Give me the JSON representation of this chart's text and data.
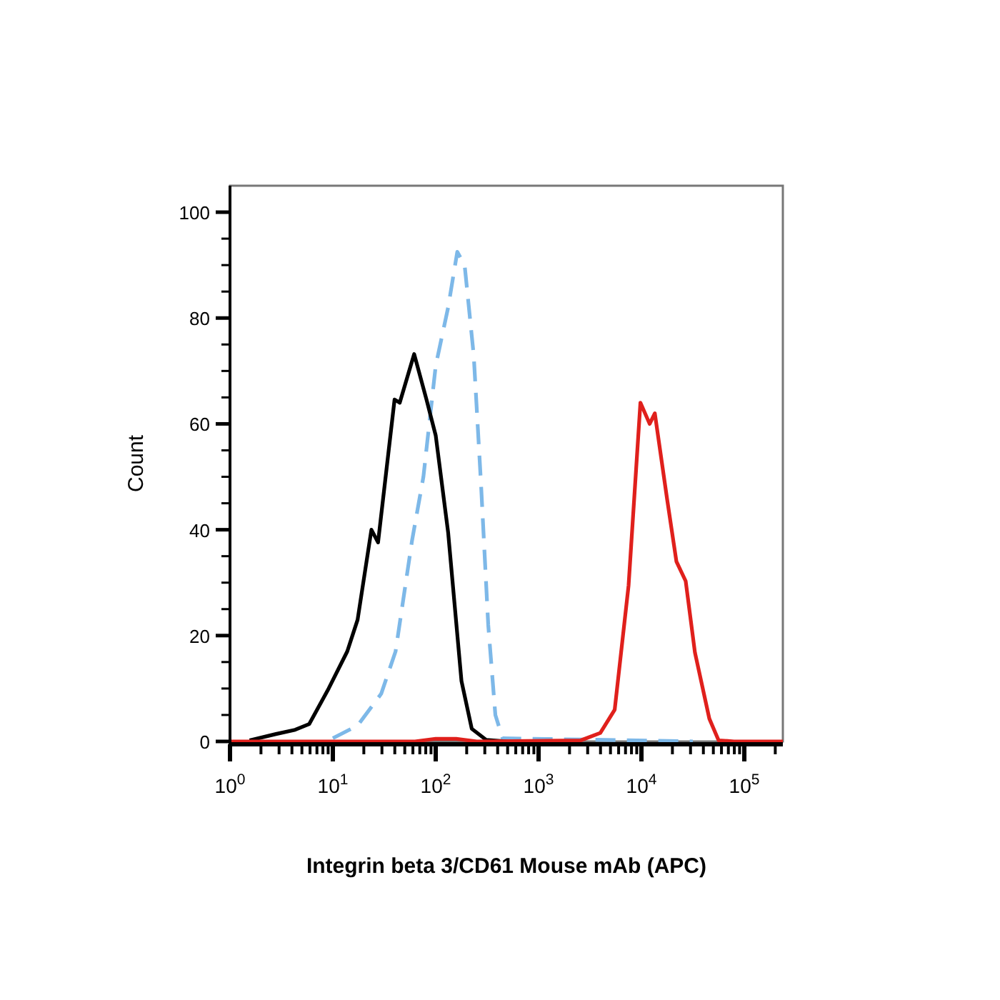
{
  "chart_data": {
    "type": "line",
    "xlabel": "Integrin beta 3/CD61 Mouse mAb (APC)",
    "ylabel": "Count",
    "log": "x",
    "xlim": [
      1,
      237000
    ],
    "ylim": [
      0,
      105
    ],
    "xticks": [
      {
        "value": 1,
        "label": "10$^{0}$"
      },
      {
        "value": 2,
        "label": null
      },
      {
        "value": 3,
        "label": null
      },
      {
        "value": 4,
        "label": null
      },
      {
        "value": 5,
        "label": null
      },
      {
        "value": 6,
        "label": null
      },
      {
        "value": 7,
        "label": null
      },
      {
        "value": 8,
        "label": null
      },
      {
        "value": 9,
        "label": null
      },
      {
        "value": 10,
        "label": "10$^{1}$"
      },
      {
        "value": 20,
        "label": null
      },
      {
        "value": 30,
        "label": null
      },
      {
        "value": 40,
        "label": null
      },
      {
        "value": 50,
        "label": null
      },
      {
        "value": 60,
        "label": null
      },
      {
        "value": 70,
        "label": null
      },
      {
        "value": 80,
        "label": null
      },
      {
        "value": 90,
        "label": null
      },
      {
        "value": 100,
        "label": "10$^{2}$"
      },
      {
        "value": 200,
        "label": null
      },
      {
        "value": 300,
        "label": null
      },
      {
        "value": 400,
        "label": null
      },
      {
        "value": 500,
        "label": null
      },
      {
        "value": 600,
        "label": null
      },
      {
        "value": 700,
        "label": null
      },
      {
        "value": 800,
        "label": null
      },
      {
        "value": 900,
        "label": null
      },
      {
        "value": 1000,
        "label": "10$^{3}$"
      },
      {
        "value": 2000,
        "label": null
      },
      {
        "value": 3000,
        "label": null
      },
      {
        "value": 4000,
        "label": null
      },
      {
        "value": 5000,
        "label": null
      },
      {
        "value": 6000,
        "label": null
      },
      {
        "value": 7000,
        "label": null
      },
      {
        "value": 8000,
        "label": null
      },
      {
        "value": 9000,
        "label": null
      },
      {
        "value": 10000,
        "label": "10$^{4}$"
      },
      {
        "value": 20000,
        "label": null
      },
      {
        "value": 30000,
        "label": null
      },
      {
        "value": 40000,
        "label": null
      },
      {
        "value": 50000,
        "label": null
      },
      {
        "value": 60000,
        "label": null
      },
      {
        "value": 70000,
        "label": null
      },
      {
        "value": 80000,
        "label": null
      },
      {
        "value": 90000,
        "label": null
      },
      {
        "value": 100000,
        "label": "10$^{5}$"
      },
      {
        "value": 200000,
        "label": null
      }
    ],
    "yticks": [
      0,
      {
        "value": 5,
        "label": null
      },
      {
        "value": 10,
        "label": null
      },
      {
        "value": 15,
        "label": null
      },
      20,
      {
        "value": 25,
        "label": null
      },
      {
        "value": 30,
        "label": null
      },
      {
        "value": 35,
        "label": null
      },
      40,
      {
        "value": 45,
        "label": null
      },
      {
        "value": 50,
        "label": null
      },
      {
        "value": 55,
        "label": null
      },
      60,
      {
        "value": 65,
        "label": null
      },
      {
        "value": 70,
        "label": null
      },
      {
        "value": 75,
        "label": null
      },
      80,
      {
        "value": 85,
        "label": null
      },
      {
        "value": 90,
        "label": null
      },
      {
        "value": 95,
        "label": null
      },
      100
    ],
    "grid": false,
    "marker": "none",
    "series": [
      {
        "color": "#7db8e8",
        "line_style": "dashed",
        "x": [
          10,
          17.4,
          29.5,
          40.7,
          58.9,
          75.9,
          100,
          132,
          162,
          191,
          234,
          275,
          324,
          380,
          447,
          31600
        ],
        "values": [
          0.6,
          3,
          9,
          17,
          38,
          50,
          71,
          82,
          92.5,
          90,
          73,
          49,
          22,
          5,
          0.6,
          0
        ]
      },
      {
        "color": "#000000",
        "line_style": "solid",
        "x": [
          1.55,
          2.8,
          4.3,
          5.9,
          9.1,
          13.8,
          17.4,
          23.7,
          27.5,
          39.8,
          44.7,
          61.7,
          81.3,
          100,
          132,
          178,
          224,
          309,
          501
        ],
        "values": [
          0.2,
          1.4,
          2.2,
          3.3,
          10,
          17,
          23,
          40,
          37.6,
          64.6,
          64,
          73.2,
          64.6,
          57.8,
          39.5,
          11.4,
          2.4,
          0.3,
          0
        ]
      },
      {
        "color": "#e0201c",
        "line_style": "solid",
        "x": [
          1,
          63,
          100,
          158,
          251,
          2570,
          3981,
          5495,
          7499,
          9772,
          12023,
          13490,
          17783,
          21878,
          26915,
          33113,
          45709,
          56234,
          79433,
          237000
        ],
        "values": [
          0,
          0,
          0.5,
          0.5,
          0,
          0.2,
          1.6,
          6,
          29.5,
          64,
          60,
          62,
          45.7,
          34,
          30.3,
          16.8,
          4.3,
          0.2,
          0,
          0
        ]
      }
    ]
  }
}
